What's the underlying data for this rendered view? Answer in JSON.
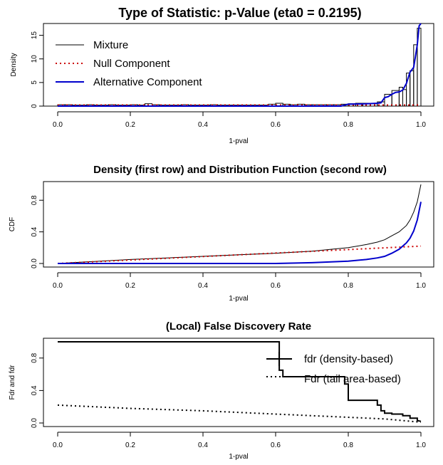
{
  "chart_data": [
    {
      "type": "line",
      "title": "Type of Statistic: p-Value (eta0 = 0.2195)",
      "xlabel": "1-pval",
      "ylabel": "Density",
      "xlim": [
        0,
        1
      ],
      "ylim": [
        0,
        17.5
      ],
      "xticks": [
        "0.0",
        "0.2",
        "0.4",
        "0.6",
        "0.8",
        "1.0"
      ],
      "yticks": [
        "0",
        "5",
        "10",
        "15"
      ],
      "legend": [
        "Mixture",
        "Null Component",
        "Alternative Component"
      ],
      "histogram": {
        "edges": [
          0.0,
          0.02,
          0.04,
          0.06,
          0.08,
          0.1,
          0.12,
          0.14,
          0.16,
          0.18,
          0.2,
          0.22,
          0.24,
          0.26,
          0.28,
          0.3,
          0.32,
          0.34,
          0.36,
          0.38,
          0.4,
          0.42,
          0.44,
          0.46,
          0.48,
          0.5,
          0.52,
          0.54,
          0.56,
          0.58,
          0.6,
          0.62,
          0.64,
          0.66,
          0.68,
          0.7,
          0.72,
          0.74,
          0.76,
          0.78,
          0.8,
          0.82,
          0.84,
          0.86,
          0.88,
          0.9,
          0.92,
          0.94,
          0.95,
          0.96,
          0.97,
          0.98,
          0.99,
          1.0
        ],
        "density": [
          0.3,
          0.3,
          0.2,
          0.2,
          0.3,
          0.2,
          0.2,
          0.3,
          0.2,
          0.2,
          0.3,
          0.2,
          0.5,
          0.3,
          0.2,
          0.2,
          0.2,
          0.3,
          0.2,
          0.2,
          0.2,
          0.3,
          0.2,
          0.2,
          0.2,
          0.2,
          0.2,
          0.2,
          0.2,
          0.4,
          0.6,
          0.4,
          0.3,
          0.4,
          0.3,
          0.3,
          0.3,
          0.3,
          0.3,
          0.4,
          0.5,
          0.6,
          0.6,
          0.5,
          0.9,
          2.5,
          3.3,
          4.0,
          3.5,
          7.0,
          7.5,
          13.0,
          16.5
        ]
      },
      "series": [
        {
          "name": "Null Component",
          "color": "#cc0000",
          "style": "dotted",
          "x": [
            0,
            1
          ],
          "y": [
            0.22,
            0.22
          ]
        },
        {
          "name": "Alternative Component",
          "color": "#0000cc",
          "style": "solid",
          "x": [
            0.0,
            0.2,
            0.4,
            0.6,
            0.78,
            0.8,
            0.85,
            0.88,
            0.89,
            0.9,
            0.91,
            0.92,
            0.93,
            0.94,
            0.95,
            0.96,
            0.97,
            0.98,
            0.985,
            0.99,
            0.995,
            1.0
          ],
          "y": [
            0.0,
            0.0,
            0.0,
            0.0,
            0.0,
            0.4,
            0.5,
            0.6,
            0.7,
            1.8,
            2.0,
            2.5,
            2.9,
            3.0,
            3.4,
            4.8,
            7.2,
            8.2,
            10.5,
            13.0,
            17.0,
            17.5
          ]
        }
      ]
    },
    {
      "type": "line",
      "title": "Density (first row) and Distribution Function (second row)",
      "xlabel": "1-pval",
      "ylabel": "CDF",
      "xlim": [
        0,
        1
      ],
      "ylim": [
        0,
        1
      ],
      "xticks": [
        "0.0",
        "0.2",
        "0.4",
        "0.6",
        "0.8",
        "1.0"
      ],
      "yticks": [
        "0.0",
        "0.4",
        "0.8"
      ],
      "series": [
        {
          "name": "Mixture",
          "color": "#000000",
          "style": "solid",
          "x": [
            0.0,
            0.1,
            0.2,
            0.3,
            0.4,
            0.5,
            0.6,
            0.7,
            0.8,
            0.85,
            0.88,
            0.9,
            0.92,
            0.94,
            0.96,
            0.97,
            0.98,
            0.99,
            1.0
          ],
          "y": [
            0.0,
            0.025,
            0.05,
            0.07,
            0.09,
            0.11,
            0.13,
            0.155,
            0.2,
            0.24,
            0.27,
            0.3,
            0.35,
            0.4,
            0.48,
            0.55,
            0.65,
            0.78,
            1.0
          ]
        },
        {
          "name": "Null Component",
          "color": "#cc0000",
          "style": "dotted",
          "x": [
            0,
            1
          ],
          "y": [
            0,
            0.2195
          ]
        },
        {
          "name": "Alternative Component",
          "color": "#0000cc",
          "style": "solid",
          "x": [
            0.0,
            0.6,
            0.7,
            0.8,
            0.85,
            0.88,
            0.9,
            0.92,
            0.94,
            0.96,
            0.97,
            0.98,
            0.99,
            1.0
          ],
          "y": [
            0.0,
            0.0,
            0.01,
            0.03,
            0.05,
            0.07,
            0.09,
            0.13,
            0.18,
            0.26,
            0.32,
            0.41,
            0.55,
            0.78
          ]
        }
      ]
    },
    {
      "type": "line",
      "title": "(Local) False Discovery Rate",
      "xlabel": "1-pval",
      "ylabel": "Fdr and fdr",
      "xlim": [
        0,
        1
      ],
      "ylim": [
        0,
        1
      ],
      "xticks": [
        "0.0",
        "0.2",
        "0.4",
        "0.6",
        "0.8",
        "1.0"
      ],
      "yticks": [
        "0.0",
        "0.4",
        "0.8"
      ],
      "legend": [
        "fdr (density-based)",
        "Fdr (tail area-based)"
      ],
      "series": [
        {
          "name": "fdr (density-based)",
          "color": "#000000",
          "style": "solid-step",
          "x": [
            0.0,
            0.61,
            0.61,
            0.62,
            0.62,
            0.79,
            0.79,
            0.8,
            0.8,
            0.88,
            0.88,
            0.89,
            0.89,
            0.9,
            0.9,
            0.92,
            0.92,
            0.95,
            0.95,
            0.97,
            0.97,
            0.99,
            0.99,
            1.0
          ],
          "y": [
            1.0,
            1.0,
            0.65,
            0.65,
            0.57,
            0.57,
            0.48,
            0.48,
            0.28,
            0.28,
            0.22,
            0.22,
            0.15,
            0.15,
            0.12,
            0.12,
            0.11,
            0.11,
            0.09,
            0.09,
            0.06,
            0.06,
            0.03,
            0.02
          ]
        },
        {
          "name": "Fdr (tail area-based)",
          "color": "#000000",
          "style": "dotted",
          "x": [
            0.0,
            0.2,
            0.4,
            0.6,
            0.8,
            0.9,
            0.95,
            1.0
          ],
          "y": [
            0.22,
            0.18,
            0.15,
            0.11,
            0.07,
            0.05,
            0.03,
            0.01
          ]
        }
      ]
    }
  ]
}
